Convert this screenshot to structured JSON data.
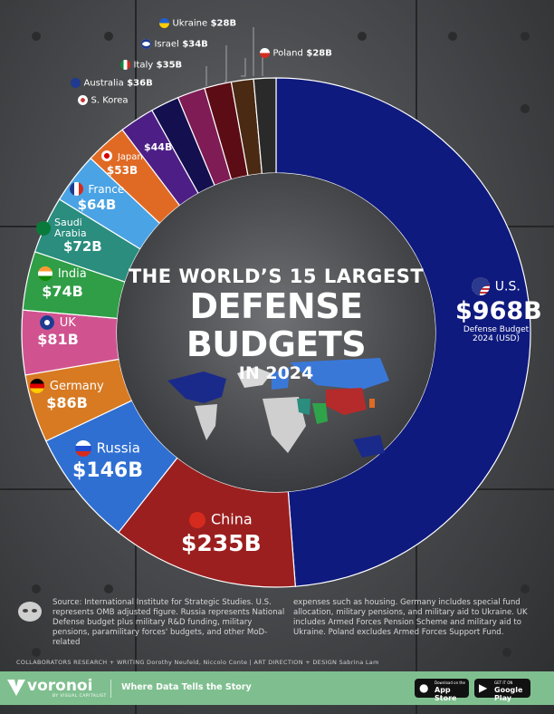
{
  "title": {
    "line1": "THE WORLD’S 15 LARGEST",
    "line2": "DEFENSE BUDGETS",
    "line3": "IN 2024"
  },
  "chart_data": {
    "type": "pie",
    "donut": true,
    "unit": "Defense Budget 2024 (USD)",
    "categories": [
      "U.S.",
      "China",
      "Russia",
      "Germany",
      "UK",
      "India",
      "Saudi Arabia",
      "France",
      "Japan",
      "S. Korea",
      "Australia",
      "Italy",
      "Israel",
      "Ukraine",
      "Poland"
    ],
    "values": [
      968,
      235,
      146,
      86,
      81,
      74,
      72,
      64,
      53,
      44,
      36,
      35,
      34,
      28,
      28
    ],
    "value_labels": [
      "$968B",
      "$235B",
      "$146B",
      "$86B",
      "$81B",
      "$74B",
      "$72B",
      "$64B",
      "$53B",
      "$44B",
      "$36B",
      "$35B",
      "$34B",
      "$28B",
      "$28B"
    ],
    "colors": [
      "#0f1a7e",
      "#9c1f1f",
      "#2f6fd2",
      "#d77a22",
      "#d0538f",
      "#2f9e47",
      "#2a8d7e",
      "#4aa3e4",
      "#e06a24",
      "#4d1f86",
      "#14104f",
      "#7f1c55",
      "#5c0c14",
      "#4a2a12",
      "#2a2a2a"
    ]
  },
  "us_note": {
    "line1": "Defense Budget",
    "line2": "2024 (USD)"
  },
  "source": {
    "col1": "Source: International Institute for Strategic Studies. U.S. represents OMB adjusted figure. Russia represents National Defense budget plus military R&D funding, military pensions, paramilitary forces' budgets, and other MoD-related",
    "col2": "expenses such as housing. Germany includes special fund allocation, military pensions, and military aid to Ukraine. UK includes Armed Forces Pension Scheme and military aid to Ukraine. Poland excludes Armed Forces Support Fund."
  },
  "collaborators": "COLLABORATORS   RESEARCH + WRITING Dorothy Neufeld, Niccolo Conte  |  ART DIRECTION + DESIGN Sabrina Lam",
  "footer": {
    "brand": "voronoi",
    "brand_sub": "BY VISUAL CAPITALIST",
    "tagline": "Where Data Tells the Story",
    "appstore_small": "Download on the",
    "appstore": "App Store",
    "googleplay_small": "GET IT ON",
    "googleplay": "Google Play"
  }
}
